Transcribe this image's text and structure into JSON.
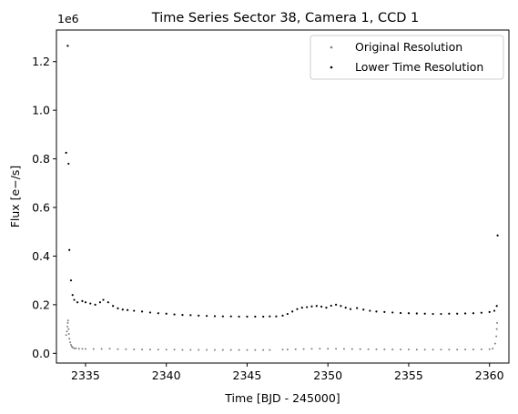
{
  "chart_data": {
    "type": "scatter",
    "title": "Time Series Sector 38, Camera 1, CCD 1",
    "xlabel": "Time [BJD - 245000]",
    "ylabel": "Flux [e−/s]",
    "y_offset_label": "1e6",
    "xlim": [
      2333.2,
      2361.2
    ],
    "ylim": [
      -40000,
      1330000
    ],
    "x_ticks": [
      2335,
      2340,
      2345,
      2350,
      2355,
      2360
    ],
    "x_tick_labels": [
      "2335",
      "2340",
      "2345",
      "2350",
      "2355",
      "2360"
    ],
    "y_ticks": [
      0,
      200000,
      400000,
      600000,
      800000,
      1000000,
      1200000
    ],
    "y_tick_labels": [
      "0.0",
      "0.2",
      "0.4",
      "0.6",
      "0.8",
      "1.0",
      "1.2"
    ],
    "grid": false,
    "legend_position": "top-right",
    "series": [
      {
        "name": "Original Resolution",
        "color": "#808080",
        "marker_radius": 1,
        "points": [
          [
            2333.8,
            75000
          ],
          [
            2333.85,
            90000
          ],
          [
            2333.88,
            110000
          ],
          [
            2333.9,
            125000
          ],
          [
            2333.92,
            135000
          ],
          [
            2333.95,
            100000
          ],
          [
            2333.97,
            80000
          ],
          [
            2334.0,
            60000
          ],
          [
            2334.05,
            45000
          ],
          [
            2334.1,
            35000
          ],
          [
            2334.15,
            28000
          ],
          [
            2334.2,
            24000
          ],
          [
            2334.3,
            21000
          ],
          [
            2334.4,
            20000
          ],
          [
            2334.6,
            19000
          ],
          [
            2334.8,
            18500
          ],
          [
            2335.0,
            18000
          ],
          [
            2335.5,
            17500
          ],
          [
            2336.0,
            18000
          ],
          [
            2336.5,
            19000
          ],
          [
            2337.0,
            17000
          ],
          [
            2337.5,
            16500
          ],
          [
            2338.0,
            16000
          ],
          [
            2338.5,
            15500
          ],
          [
            2339.0,
            15500
          ],
          [
            2339.5,
            15000
          ],
          [
            2340.0,
            15000
          ],
          [
            2340.5,
            15000
          ],
          [
            2341.0,
            14500
          ],
          [
            2341.5,
            14500
          ],
          [
            2342.0,
            14500
          ],
          [
            2342.5,
            14500
          ],
          [
            2343.0,
            14000
          ],
          [
            2343.5,
            14000
          ],
          [
            2344.0,
            14000
          ],
          [
            2344.5,
            14000
          ],
          [
            2345.0,
            14000
          ],
          [
            2345.5,
            14000
          ],
          [
            2346.0,
            14000
          ],
          [
            2346.4,
            14000
          ],
          [
            2347.2,
            15000
          ],
          [
            2347.5,
            15500
          ],
          [
            2348.0,
            16500
          ],
          [
            2348.5,
            17500
          ],
          [
            2349.0,
            18500
          ],
          [
            2349.5,
            19000
          ],
          [
            2350.0,
            19000
          ],
          [
            2350.5,
            18500
          ],
          [
            2351.0,
            18000
          ],
          [
            2351.5,
            17500
          ],
          [
            2352.0,
            17000
          ],
          [
            2352.5,
            16500
          ],
          [
            2353.0,
            16000
          ],
          [
            2353.5,
            16000
          ],
          [
            2354.0,
            15500
          ],
          [
            2354.5,
            15500
          ],
          [
            2355.0,
            15500
          ],
          [
            2355.5,
            15000
          ],
          [
            2356.0,
            15000
          ],
          [
            2356.5,
            15000
          ],
          [
            2357.0,
            15000
          ],
          [
            2357.5,
            15000
          ],
          [
            2358.0,
            15000
          ],
          [
            2358.5,
            15500
          ],
          [
            2359.0,
            15500
          ],
          [
            2359.5,
            16000
          ],
          [
            2360.0,
            17000
          ],
          [
            2360.2,
            20000
          ],
          [
            2360.35,
            40000
          ],
          [
            2360.42,
            70000
          ],
          [
            2360.45,
            100000
          ],
          [
            2360.47,
            125000
          ]
        ]
      },
      {
        "name": "Lower Time Resolution",
        "color": "#000000",
        "marker_radius": 1.1,
        "points": [
          [
            2333.9,
            1265000
          ],
          [
            2333.8,
            825000
          ],
          [
            2333.95,
            780000
          ],
          [
            2334.0,
            425000
          ],
          [
            2334.1,
            300000
          ],
          [
            2334.2,
            240000
          ],
          [
            2334.3,
            220000
          ],
          [
            2334.5,
            210000
          ],
          [
            2334.8,
            215000
          ],
          [
            2335.0,
            210000
          ],
          [
            2335.3,
            205000
          ],
          [
            2335.6,
            200000
          ],
          [
            2335.9,
            210000
          ],
          [
            2336.1,
            220000
          ],
          [
            2336.4,
            210000
          ],
          [
            2336.7,
            195000
          ],
          [
            2337.0,
            185000
          ],
          [
            2337.3,
            180000
          ],
          [
            2337.6,
            178000
          ],
          [
            2338.0,
            175000
          ],
          [
            2338.5,
            172000
          ],
          [
            2339.0,
            168000
          ],
          [
            2339.5,
            165000
          ],
          [
            2340.0,
            163000
          ],
          [
            2340.5,
            160000
          ],
          [
            2341.0,
            158000
          ],
          [
            2341.5,
            157000
          ],
          [
            2342.0,
            155000
          ],
          [
            2342.5,
            154000
          ],
          [
            2343.0,
            153000
          ],
          [
            2343.5,
            152000
          ],
          [
            2344.0,
            152000
          ],
          [
            2344.5,
            151000
          ],
          [
            2345.0,
            151000
          ],
          [
            2345.5,
            151000
          ],
          [
            2346.0,
            151000
          ],
          [
            2346.4,
            152000
          ],
          [
            2346.8,
            152000
          ],
          [
            2347.2,
            155000
          ],
          [
            2347.5,
            162000
          ],
          [
            2347.8,
            172000
          ],
          [
            2348.1,
            182000
          ],
          [
            2348.4,
            188000
          ],
          [
            2348.7,
            190000
          ],
          [
            2349.0,
            193000
          ],
          [
            2349.3,
            195000
          ],
          [
            2349.6,
            192000
          ],
          [
            2349.9,
            188000
          ],
          [
            2350.2,
            196000
          ],
          [
            2350.5,
            200000
          ],
          [
            2350.8,
            195000
          ],
          [
            2351.1,
            188000
          ],
          [
            2351.4,
            182000
          ],
          [
            2351.8,
            186000
          ],
          [
            2352.2,
            180000
          ],
          [
            2352.6,
            175000
          ],
          [
            2353.0,
            172000
          ],
          [
            2353.5,
            170000
          ],
          [
            2354.0,
            168000
          ],
          [
            2354.5,
            166000
          ],
          [
            2355.0,
            165000
          ],
          [
            2355.5,
            164000
          ],
          [
            2356.0,
            163000
          ],
          [
            2356.5,
            162000
          ],
          [
            2357.0,
            162000
          ],
          [
            2357.5,
            163000
          ],
          [
            2358.0,
            163000
          ],
          [
            2358.5,
            164000
          ],
          [
            2359.0,
            165000
          ],
          [
            2359.5,
            167000
          ],
          [
            2360.0,
            170000
          ],
          [
            2360.3,
            175000
          ],
          [
            2360.45,
            195000
          ],
          [
            2360.5,
            485000
          ]
        ]
      }
    ]
  }
}
